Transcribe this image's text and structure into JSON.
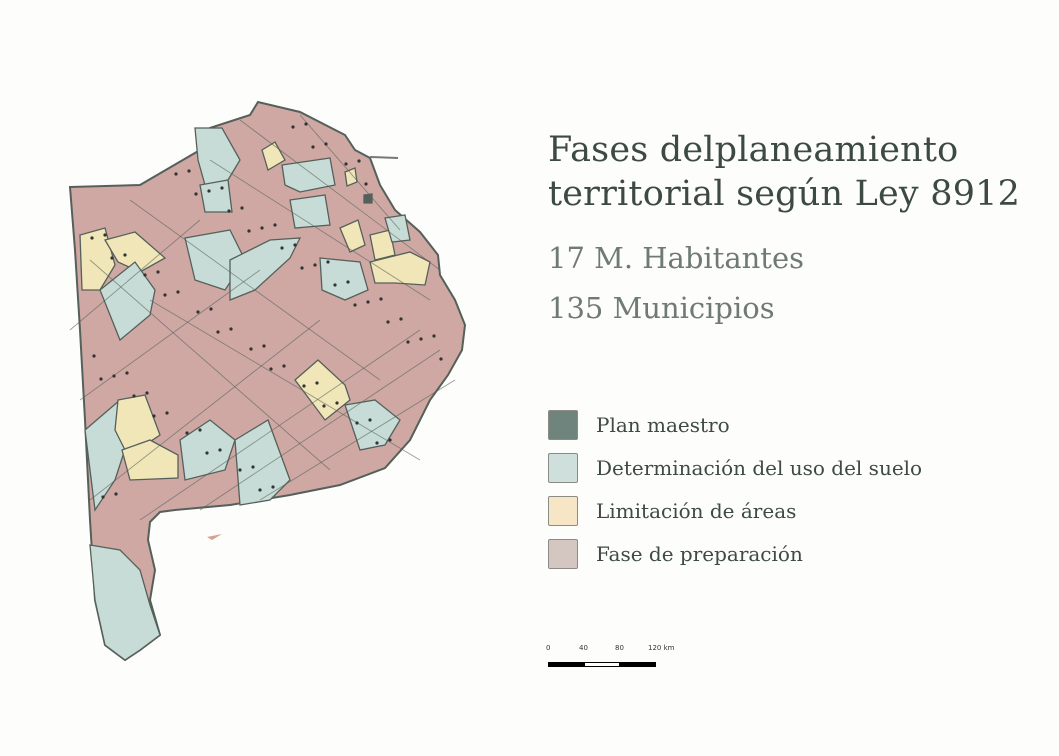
{
  "title_line1": "Fases delplaneamiento",
  "title_line2": "territorial según Ley 8912",
  "stats": {
    "population": "17 M. Habitantes",
    "municipalities": "135 Municipios"
  },
  "legend": [
    {
      "label": "Plan maestro",
      "color": "#6f847c"
    },
    {
      "label": "Determinación del uso del suelo",
      "color": "#cfe0dc"
    },
    {
      "label": "Limitación de áreas",
      "color": "#f6e6c6"
    },
    {
      "label": "Fase de preparación",
      "color": "#d4c6c0"
    }
  ],
  "map_colors": {
    "preparacion": "#cfa8a4",
    "uso_suelo": "#c7dcd6",
    "limitacion": "#f0e6b8",
    "plan_maestro": "#55605a",
    "border": "#55605a"
  },
  "scale_bar": {
    "ticks": [
      "0",
      "40",
      "80",
      "120 km"
    ]
  }
}
